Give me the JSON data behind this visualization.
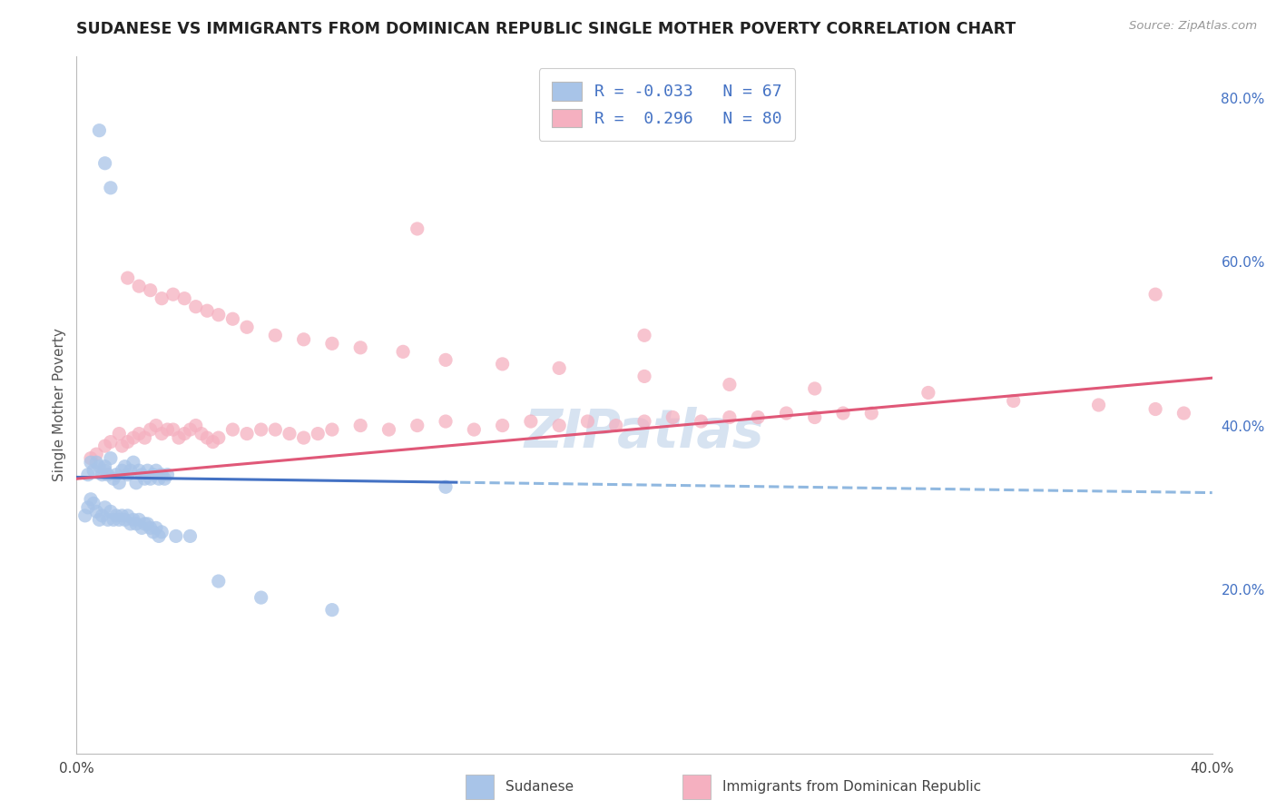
{
  "title": "SUDANESE VS IMMIGRANTS FROM DOMINICAN REPUBLIC SINGLE MOTHER POVERTY CORRELATION CHART",
  "source": "Source: ZipAtlas.com",
  "ylabel": "Single Mother Poverty",
  "legend_label1": "Sudanese",
  "legend_label2": "Immigrants from Dominican Republic",
  "r1": -0.033,
  "n1": 67,
  "r2": 0.296,
  "n2": 80,
  "color_blue": "#a8c4e8",
  "color_pink": "#f5b0c0",
  "color_blue_line": "#4472c4",
  "color_pink_line": "#e05878",
  "color_dashed": "#90b8e0",
  "xlim": [
    0.0,
    0.4
  ],
  "ylim": [
    0.0,
    0.85
  ],
  "y_ticks_right": [
    0.2,
    0.4,
    0.6,
    0.8
  ],
  "y_tick_labels_right": [
    "20.0%",
    "40.0%",
    "60.0%",
    "80.0%"
  ],
  "watermark": "ZIPatlas",
  "background_color": "#ffffff",
  "grid_color": "#c8d8ea",
  "sudanese_x": [
    0.004,
    0.005,
    0.006,
    0.007,
    0.008,
    0.009,
    0.01,
    0.01,
    0.011,
    0.012,
    0.013,
    0.014,
    0.015,
    0.016,
    0.017,
    0.018,
    0.019,
    0.02,
    0.021,
    0.022,
    0.023,
    0.024,
    0.025,
    0.026,
    0.027,
    0.028,
    0.029,
    0.03,
    0.031,
    0.032,
    0.003,
    0.004,
    0.005,
    0.006,
    0.007,
    0.008,
    0.009,
    0.01,
    0.011,
    0.012,
    0.013,
    0.014,
    0.015,
    0.016,
    0.017,
    0.018,
    0.019,
    0.02,
    0.021,
    0.022,
    0.023,
    0.024,
    0.025,
    0.026,
    0.027,
    0.028,
    0.029,
    0.03,
    0.035,
    0.04,
    0.05,
    0.065,
    0.09,
    0.13,
    0.01,
    0.012,
    0.008
  ],
  "sudanese_y": [
    0.34,
    0.355,
    0.345,
    0.355,
    0.35,
    0.34,
    0.35,
    0.345,
    0.34,
    0.36,
    0.335,
    0.34,
    0.33,
    0.345,
    0.35,
    0.34,
    0.345,
    0.355,
    0.33,
    0.345,
    0.34,
    0.335,
    0.345,
    0.335,
    0.34,
    0.345,
    0.335,
    0.34,
    0.335,
    0.34,
    0.29,
    0.3,
    0.31,
    0.305,
    0.295,
    0.285,
    0.29,
    0.3,
    0.285,
    0.295,
    0.285,
    0.29,
    0.285,
    0.29,
    0.285,
    0.29,
    0.28,
    0.285,
    0.28,
    0.285,
    0.275,
    0.28,
    0.28,
    0.275,
    0.27,
    0.275,
    0.265,
    0.27,
    0.265,
    0.265,
    0.21,
    0.19,
    0.175,
    0.325,
    0.72,
    0.69,
    0.76
  ],
  "dominican_x": [
    0.005,
    0.007,
    0.01,
    0.012,
    0.015,
    0.016,
    0.018,
    0.02,
    0.022,
    0.024,
    0.026,
    0.028,
    0.03,
    0.032,
    0.034,
    0.036,
    0.038,
    0.04,
    0.042,
    0.044,
    0.046,
    0.048,
    0.05,
    0.055,
    0.06,
    0.065,
    0.07,
    0.075,
    0.08,
    0.085,
    0.09,
    0.1,
    0.11,
    0.12,
    0.13,
    0.14,
    0.15,
    0.16,
    0.17,
    0.18,
    0.19,
    0.2,
    0.21,
    0.22,
    0.23,
    0.24,
    0.25,
    0.26,
    0.27,
    0.28,
    0.018,
    0.022,
    0.026,
    0.03,
    0.034,
    0.038,
    0.042,
    0.046,
    0.05,
    0.055,
    0.06,
    0.07,
    0.08,
    0.09,
    0.1,
    0.115,
    0.13,
    0.15,
    0.17,
    0.2,
    0.23,
    0.26,
    0.3,
    0.33,
    0.36,
    0.38,
    0.39,
    0.12,
    0.2,
    0.38
  ],
  "dominican_y": [
    0.36,
    0.365,
    0.375,
    0.38,
    0.39,
    0.375,
    0.38,
    0.385,
    0.39,
    0.385,
    0.395,
    0.4,
    0.39,
    0.395,
    0.395,
    0.385,
    0.39,
    0.395,
    0.4,
    0.39,
    0.385,
    0.38,
    0.385,
    0.395,
    0.39,
    0.395,
    0.395,
    0.39,
    0.385,
    0.39,
    0.395,
    0.4,
    0.395,
    0.4,
    0.405,
    0.395,
    0.4,
    0.405,
    0.4,
    0.405,
    0.4,
    0.405,
    0.41,
    0.405,
    0.41,
    0.41,
    0.415,
    0.41,
    0.415,
    0.415,
    0.58,
    0.57,
    0.565,
    0.555,
    0.56,
    0.555,
    0.545,
    0.54,
    0.535,
    0.53,
    0.52,
    0.51,
    0.505,
    0.5,
    0.495,
    0.49,
    0.48,
    0.475,
    0.47,
    0.46,
    0.45,
    0.445,
    0.44,
    0.43,
    0.425,
    0.42,
    0.415,
    0.64,
    0.51,
    0.56
  ]
}
